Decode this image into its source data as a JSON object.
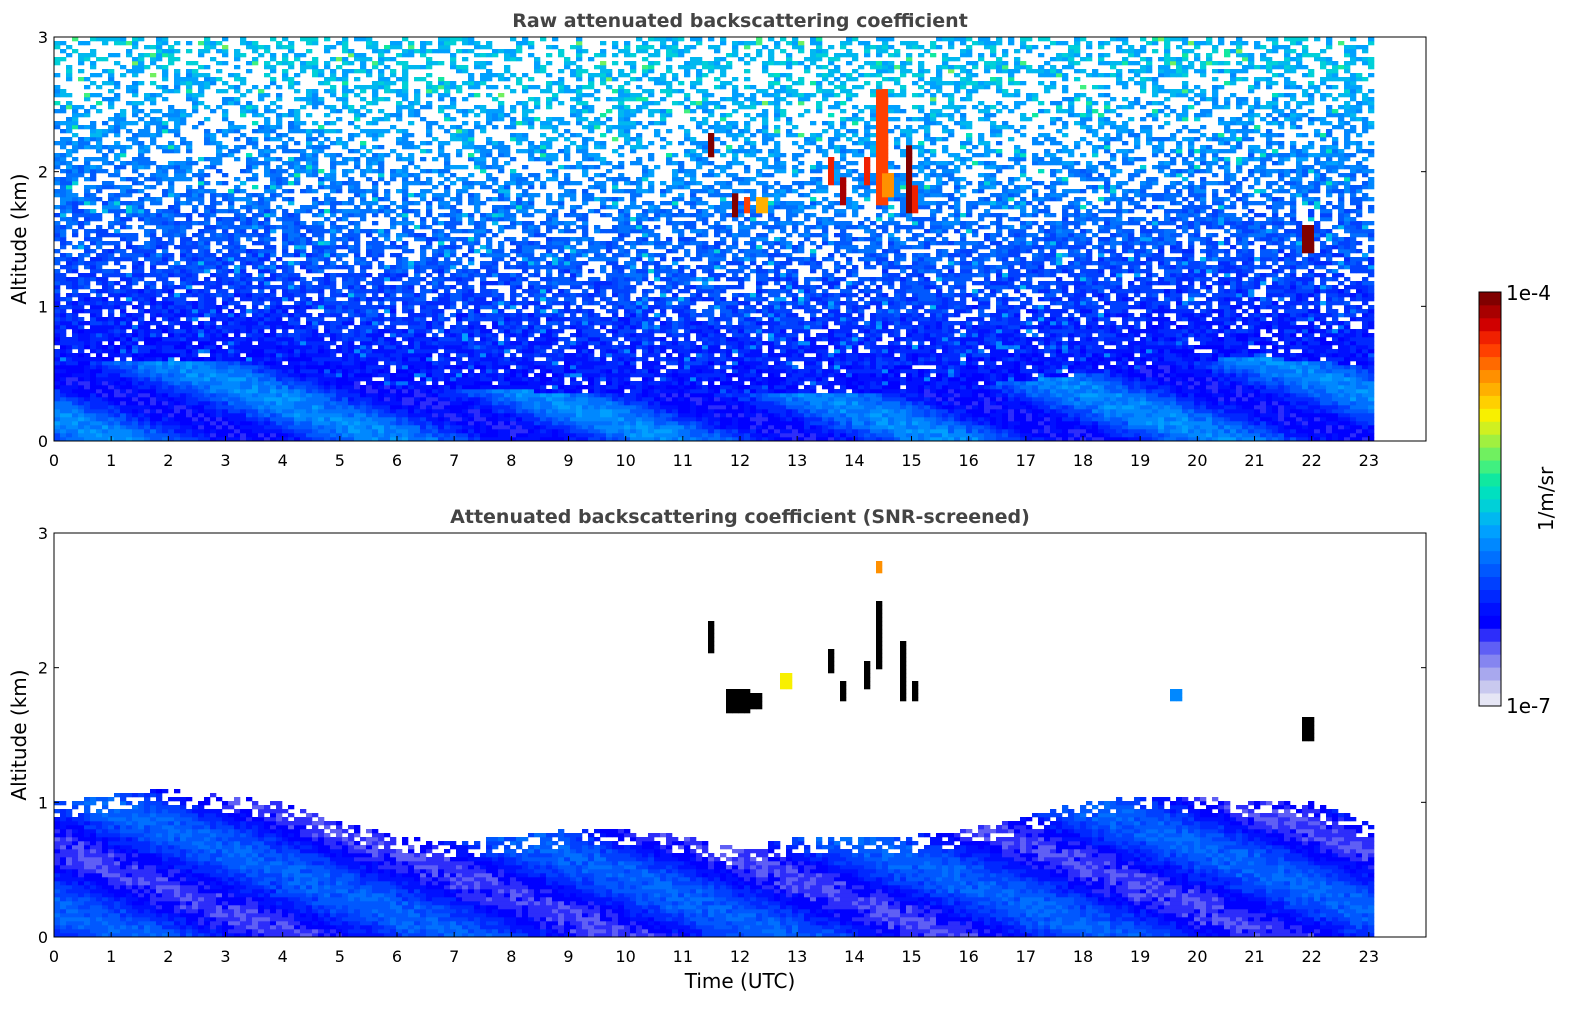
{
  "chart_data": [
    {
      "type": "heatmap",
      "title": "Raw attenuated backscattering coefficient",
      "xlabel": "",
      "ylabel": "Altitude (km)",
      "xlim": [
        0,
        24
      ],
      "ylim": [
        0,
        3
      ],
      "xticks": [
        "0",
        "1",
        "2",
        "3",
        "4",
        "5",
        "6",
        "7",
        "8",
        "9",
        "10",
        "11",
        "12",
        "13",
        "14",
        "15",
        "16",
        "17",
        "18",
        "19",
        "20",
        "21",
        "22",
        "23"
      ],
      "yticks": [
        "0",
        "1",
        "2",
        "3"
      ],
      "data_extent_hours": [
        0,
        23
      ],
      "mixed_layer_top_km": [
        0.55,
        0.6,
        0.6,
        0.6,
        0.55,
        0.45,
        0.4,
        0.4,
        0.38,
        0.36,
        0.35,
        0.35,
        0.35,
        0.35,
        0.36,
        0.38,
        0.4,
        0.45,
        0.5,
        0.55,
        0.6,
        0.62,
        0.6,
        0.55
      ],
      "noise_level": "high above 1 km",
      "cloud_features": [
        {
          "t": 11.5,
          "z0": 2.1,
          "z1": 2.3,
          "intensity": 1.0
        },
        {
          "t": 11.9,
          "z0": 1.65,
          "z1": 1.85,
          "intensity": 1.0
        },
        {
          "t": 12.1,
          "z0": 1.7,
          "z1": 1.8,
          "intensity": 0.85
        },
        {
          "t": 12.4,
          "z0": 1.7,
          "z1": 1.8,
          "intensity": 0.75
        },
        {
          "t": 13.6,
          "z0": 1.9,
          "z1": 2.1,
          "intensity": 0.9
        },
        {
          "t": 13.8,
          "z0": 1.75,
          "z1": 1.95,
          "intensity": 0.95
        },
        {
          "t": 14.2,
          "z0": 1.9,
          "z1": 2.1,
          "intensity": 0.9
        },
        {
          "t": 14.5,
          "z0": 1.75,
          "z1": 2.6,
          "intensity": 0.85
        },
        {
          "t": 14.6,
          "z0": 1.8,
          "z1": 2.0,
          "intensity": 0.8
        },
        {
          "t": 14.95,
          "z0": 1.7,
          "z1": 2.2,
          "intensity": 1.0
        },
        {
          "t": 15.05,
          "z0": 1.7,
          "z1": 1.9,
          "intensity": 0.9
        },
        {
          "t": 21.95,
          "z0": 1.4,
          "z1": 1.6,
          "intensity": 1.0
        }
      ]
    },
    {
      "type": "heatmap",
      "title": "Attenuated backscattering coefficient (SNR-screened)",
      "xlabel": "Time (UTC)",
      "ylabel": "Altitude (km)",
      "xlim": [
        0,
        24
      ],
      "ylim": [
        0,
        3
      ],
      "xticks": [
        "0",
        "1",
        "2",
        "3",
        "4",
        "5",
        "6",
        "7",
        "8",
        "9",
        "10",
        "11",
        "12",
        "13",
        "14",
        "15",
        "16",
        "17",
        "18",
        "19",
        "20",
        "21",
        "22",
        "23"
      ],
      "yticks": [
        "0",
        "1",
        "2",
        "3"
      ],
      "data_extent_hours": [
        0,
        23
      ],
      "signal_top_km": [
        1.0,
        1.05,
        1.1,
        1.05,
        1.0,
        0.85,
        0.75,
        0.7,
        0.75,
        0.8,
        0.8,
        0.75,
        0.65,
        0.75,
        0.75,
        0.75,
        0.8,
        0.9,
        1.0,
        1.05,
        1.05,
        1.0,
        1.0,
        0.85
      ],
      "cloud_features": [
        {
          "t": 11.5,
          "z0": 2.1,
          "z1": 2.35,
          "intensity": 1.2
        },
        {
          "t": 11.85,
          "z0": 1.65,
          "z1": 1.85,
          "intensity": 1.2
        },
        {
          "t": 12.05,
          "z0": 1.65,
          "z1": 1.85,
          "intensity": 1.2
        },
        {
          "t": 12.3,
          "z0": 1.7,
          "z1": 1.8,
          "intensity": 1.2
        },
        {
          "t": 12.8,
          "z0": 1.85,
          "z1": 1.95,
          "intensity": 0.7
        },
        {
          "t": 13.6,
          "z0": 1.95,
          "z1": 2.15,
          "intensity": 1.2
        },
        {
          "t": 13.8,
          "z0": 1.75,
          "z1": 1.9,
          "intensity": 1.2
        },
        {
          "t": 14.2,
          "z0": 1.85,
          "z1": 2.05,
          "intensity": 1.2
        },
        {
          "t": 14.45,
          "z0": 2.0,
          "z1": 2.5,
          "intensity": 1.2
        },
        {
          "t": 14.45,
          "z0": 2.7,
          "z1": 2.8,
          "intensity": 0.8
        },
        {
          "t": 14.85,
          "z0": 1.75,
          "z1": 2.2,
          "intensity": 1.2
        },
        {
          "t": 15.05,
          "z0": 1.75,
          "z1": 1.9,
          "intensity": 1.2
        },
        {
          "t": 19.6,
          "z0": 1.75,
          "z1": 1.85,
          "intensity": 0.4
        },
        {
          "t": 21.95,
          "z0": 1.45,
          "z1": 1.62,
          "intensity": 1.2
        }
      ]
    }
  ],
  "colorbar": {
    "label": "1/m/sr",
    "max_label": "1e-4",
    "min_label": "1e-7",
    "colors": [
      "#e6e6f5",
      "#c9c9ef",
      "#a8a8ee",
      "#8585f0",
      "#5f5ff5",
      "#2d2dfa",
      "#0000ff",
      "#0010ff",
      "#0028ff",
      "#0040ff",
      "#0058ff",
      "#0070ff",
      "#0088ff",
      "#00a0ff",
      "#00b8f0",
      "#00d0d8",
      "#00e0c0",
      "#10e8a0",
      "#40f080",
      "#70f060",
      "#a0f040",
      "#d0f020",
      "#f8f000",
      "#ffd000",
      "#ffb000",
      "#ff9000",
      "#ff6a00",
      "#ff4000",
      "#f02000",
      "#d00000",
      "#a80000",
      "#800000"
    ]
  }
}
